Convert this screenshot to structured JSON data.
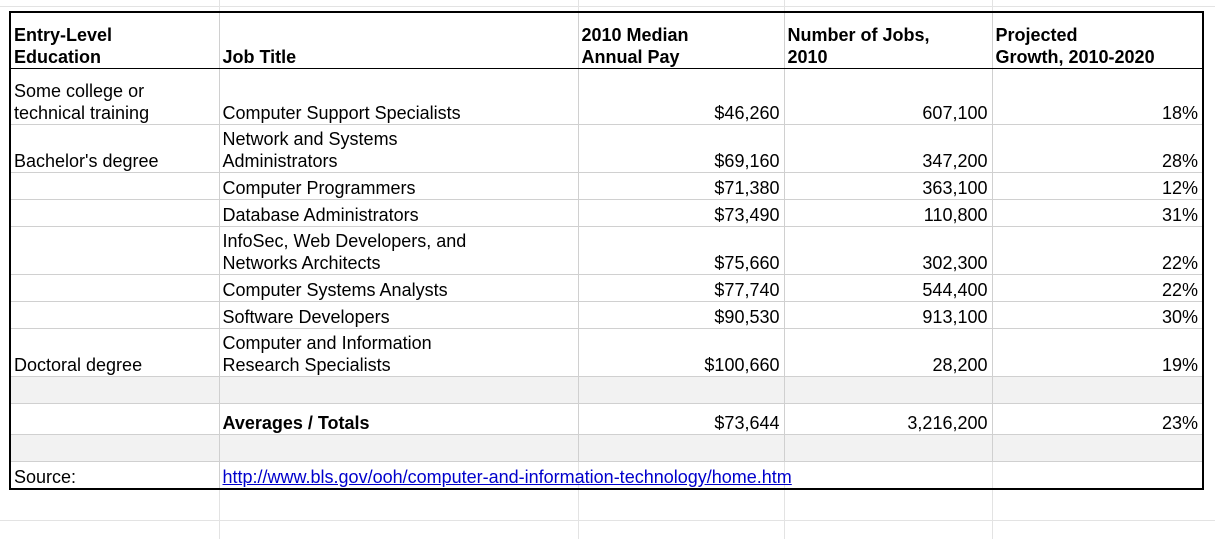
{
  "headers": {
    "education": [
      "Entry-Level",
      "Education"
    ],
    "job_title": "Job Title",
    "median_pay": [
      "2010 Median",
      "Annual Pay"
    ],
    "num_jobs": [
      "Number of Jobs,",
      "2010"
    ],
    "growth": [
      "Projected",
      "Growth, 2010-2020"
    ]
  },
  "rows": [
    {
      "education": [
        "Some college or",
        "technical training"
      ],
      "title": [
        "Computer Support Specialists"
      ],
      "pay": "$46,260",
      "jobs": "607,100",
      "growth": "18%"
    },
    {
      "education": [
        "Bachelor's degree"
      ],
      "title": [
        "Network and Systems",
        "Administrators"
      ],
      "pay": "$69,160",
      "jobs": "347,200",
      "growth": "28%"
    },
    {
      "education": [],
      "title": [
        "Computer Programmers"
      ],
      "pay": "$71,380",
      "jobs": "363,100",
      "growth": "12%"
    },
    {
      "education": [],
      "title": [
        "Database Administrators"
      ],
      "pay": "$73,490",
      "jobs": "110,800",
      "growth": "31%"
    },
    {
      "education": [],
      "title": [
        "InfoSec, Web Developers, and",
        "Networks Architects"
      ],
      "pay": "$75,660",
      "jobs": "302,300",
      "growth": "22%"
    },
    {
      "education": [],
      "title": [
        "Computer Systems Analysts"
      ],
      "pay": "$77,740",
      "jobs": "544,400",
      "growth": "22%"
    },
    {
      "education": [],
      "title": [
        "Software Developers"
      ],
      "pay": "$90,530",
      "jobs": "913,100",
      "growth": "30%"
    },
    {
      "education": [
        "Doctoral degree"
      ],
      "title": [
        "Computer and Information",
        "Research Specialists"
      ],
      "pay": "$100,660",
      "jobs": "28,200",
      "growth": "19%"
    }
  ],
  "totals": {
    "label": "Averages / Totals",
    "pay": "$73,644",
    "jobs": "3,216,200",
    "growth": "23%"
  },
  "source": {
    "label": "Source:",
    "url": "http://www.bls.gov/ooh/computer-and-information-technology/home.htm"
  }
}
